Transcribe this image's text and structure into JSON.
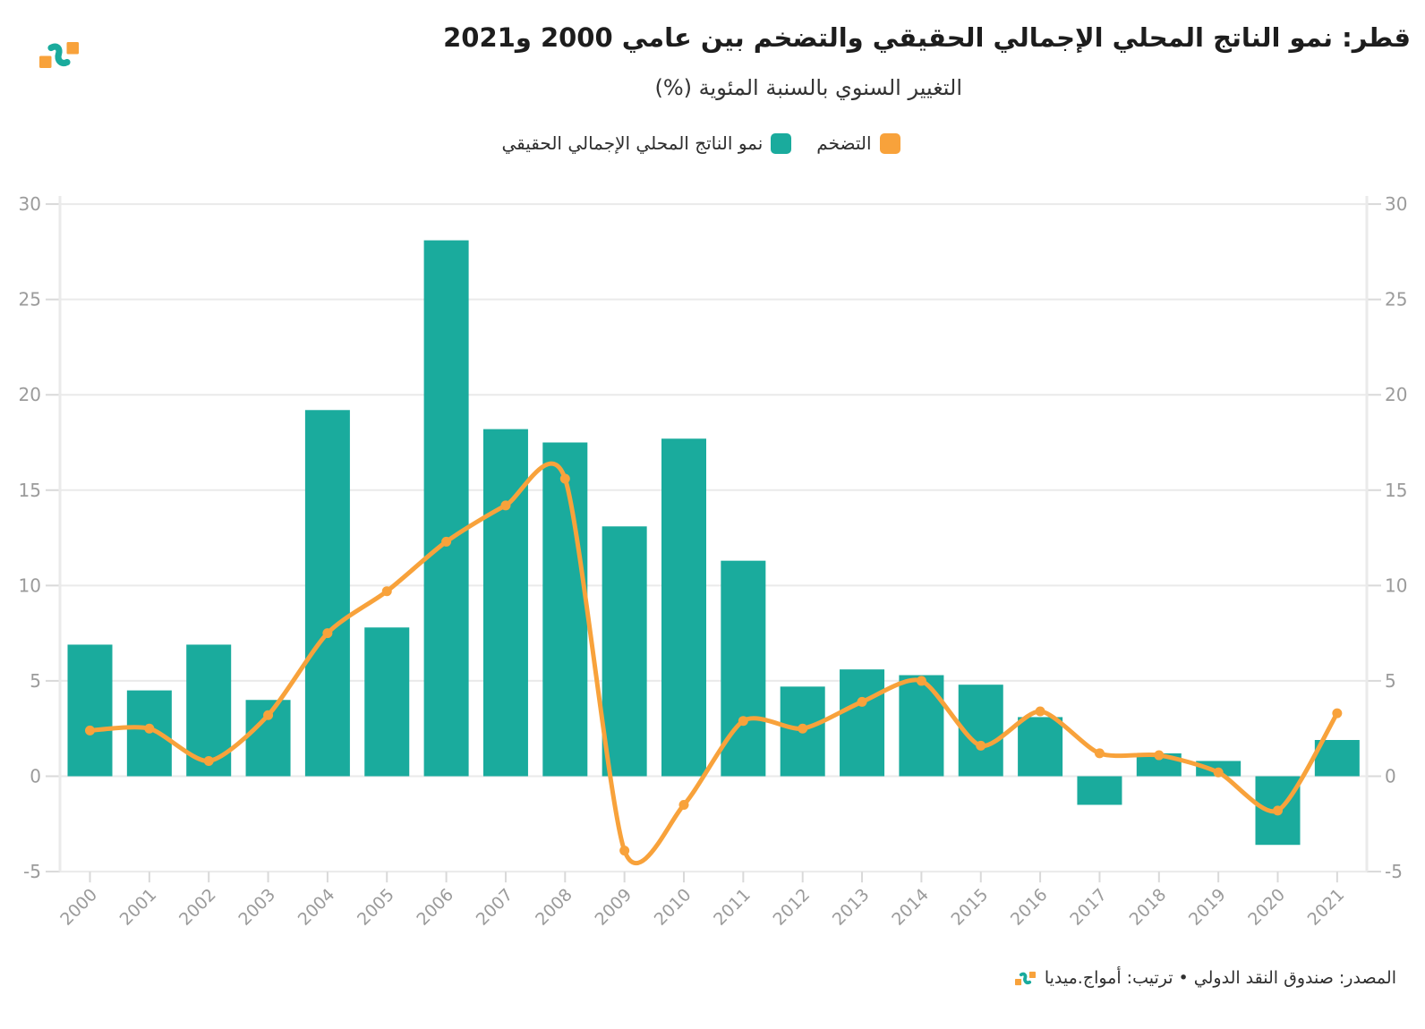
{
  "header": {
    "title": "قطر: نمو الناتج المحلي الإجمالي الحقيقي والتضخم بين عامي 2000 و2021",
    "subtitle": "التغيير السنوي بالسنبة المئوية (%)"
  },
  "legend": [
    {
      "label": "التضخم",
      "color": "#F8A23B"
    },
    {
      "label": "نمو الناتج المحلي الإجمالي الحقيقي",
      "color": "#1AAB9D"
    }
  ],
  "footer": {
    "source": "المصدر: صندوق النقد الدولي • ترتيب: أمواج.ميديا"
  },
  "colors": {
    "bar": "#1AAB9D",
    "line": "#F8A23B",
    "grid": "#EAEAEA",
    "axis": "#D9D9D9",
    "axis_label": "#9B9B9B"
  },
  "chart_data": {
    "type": "bar+line",
    "title": "قطر: نمو الناتج المحلي الإجمالي الحقيقي والتضخم بين عامي 2000 و2021",
    "subtitle": "التغيير السنوي بالسنبة المئوية (%)",
    "categories": [
      2000,
      2001,
      2002,
      2003,
      2004,
      2005,
      2006,
      2007,
      2008,
      2009,
      2010,
      2011,
      2012,
      2013,
      2014,
      2015,
      2016,
      2017,
      2018,
      2019,
      2020,
      2021
    ],
    "series": [
      {
        "name": "نمو الناتج المحلي الإجمالي الحقيقي",
        "type": "bar",
        "color": "#1AAB9D",
        "values": [
          6.9,
          4.5,
          6.9,
          4.0,
          19.2,
          7.8,
          28.1,
          18.2,
          17.5,
          13.1,
          17.7,
          11.3,
          4.7,
          5.6,
          5.3,
          4.8,
          3.1,
          -1.5,
          1.2,
          0.8,
          -3.6,
          1.9
        ]
      },
      {
        "name": "التضخم",
        "type": "line",
        "color": "#F8A23B",
        "values": [
          2.4,
          2.5,
          0.8,
          3.2,
          7.5,
          9.7,
          12.3,
          14.2,
          15.6,
          -3.9,
          -1.5,
          2.9,
          2.5,
          3.9,
          5.0,
          1.6,
          3.4,
          1.2,
          1.1,
          0.2,
          -1.8,
          3.3
        ]
      }
    ],
    "yticks": [
      30,
      25,
      20,
      15,
      10,
      5,
      0,
      -5
    ],
    "ylim": [
      -5,
      30
    ],
    "grid": true,
    "legend_position": "top-center",
    "x_label_rotation": -45
  }
}
